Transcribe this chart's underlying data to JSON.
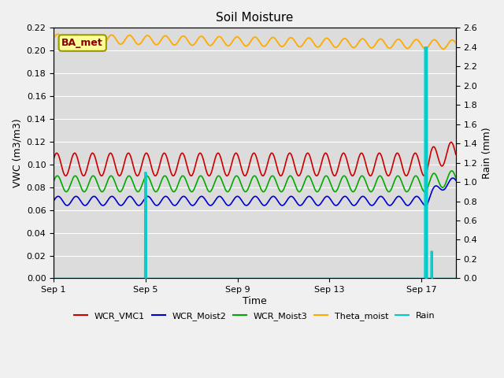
{
  "title": "Soil Moisture",
  "xlabel": "Time",
  "ylabel_left": "VWC (m3/m3)",
  "ylabel_right": "Rain (mm)",
  "xlim_days": [
    0,
    17.5
  ],
  "ylim_left": [
    0.0,
    0.22
  ],
  "ylim_right": [
    0.0,
    2.6
  ],
  "yticks_left": [
    0.0,
    0.02,
    0.04,
    0.06,
    0.08,
    0.1,
    0.12,
    0.14,
    0.16,
    0.18,
    0.2,
    0.22
  ],
  "yticks_right": [
    0.0,
    0.2,
    0.4,
    0.6,
    0.8,
    1.0,
    1.2,
    1.4,
    1.6,
    1.8,
    2.0,
    2.2,
    2.4,
    2.6
  ],
  "xtick_positions": [
    0,
    4,
    8,
    12,
    16
  ],
  "xtick_labels": [
    "Sep 1",
    "Sep 5",
    "Sep 9",
    "Sep 13",
    "Sep 17"
  ],
  "colors": {
    "WCR_VMC1": "#cc0000",
    "WCR_Moist2": "#0000cc",
    "WCR_Moist3": "#00aa00",
    "Theta_moist": "#ffaa00",
    "Rain": "#00cccc",
    "background": "#dcdcdc",
    "grid": "#ffffff",
    "fig_bg": "#f0f0f0"
  },
  "annotation_box": {
    "text": "BA_met",
    "facecolor": "#ffff99",
    "edgecolor": "#999900",
    "textcolor": "#880000"
  },
  "osc_period": 0.78,
  "rain_day1": 4.0,
  "rain_val1": 1.1,
  "rain_day2": 16.2,
  "rain_val2": 2.4,
  "rain_day3": 16.45,
  "rain_val3": 0.28
}
